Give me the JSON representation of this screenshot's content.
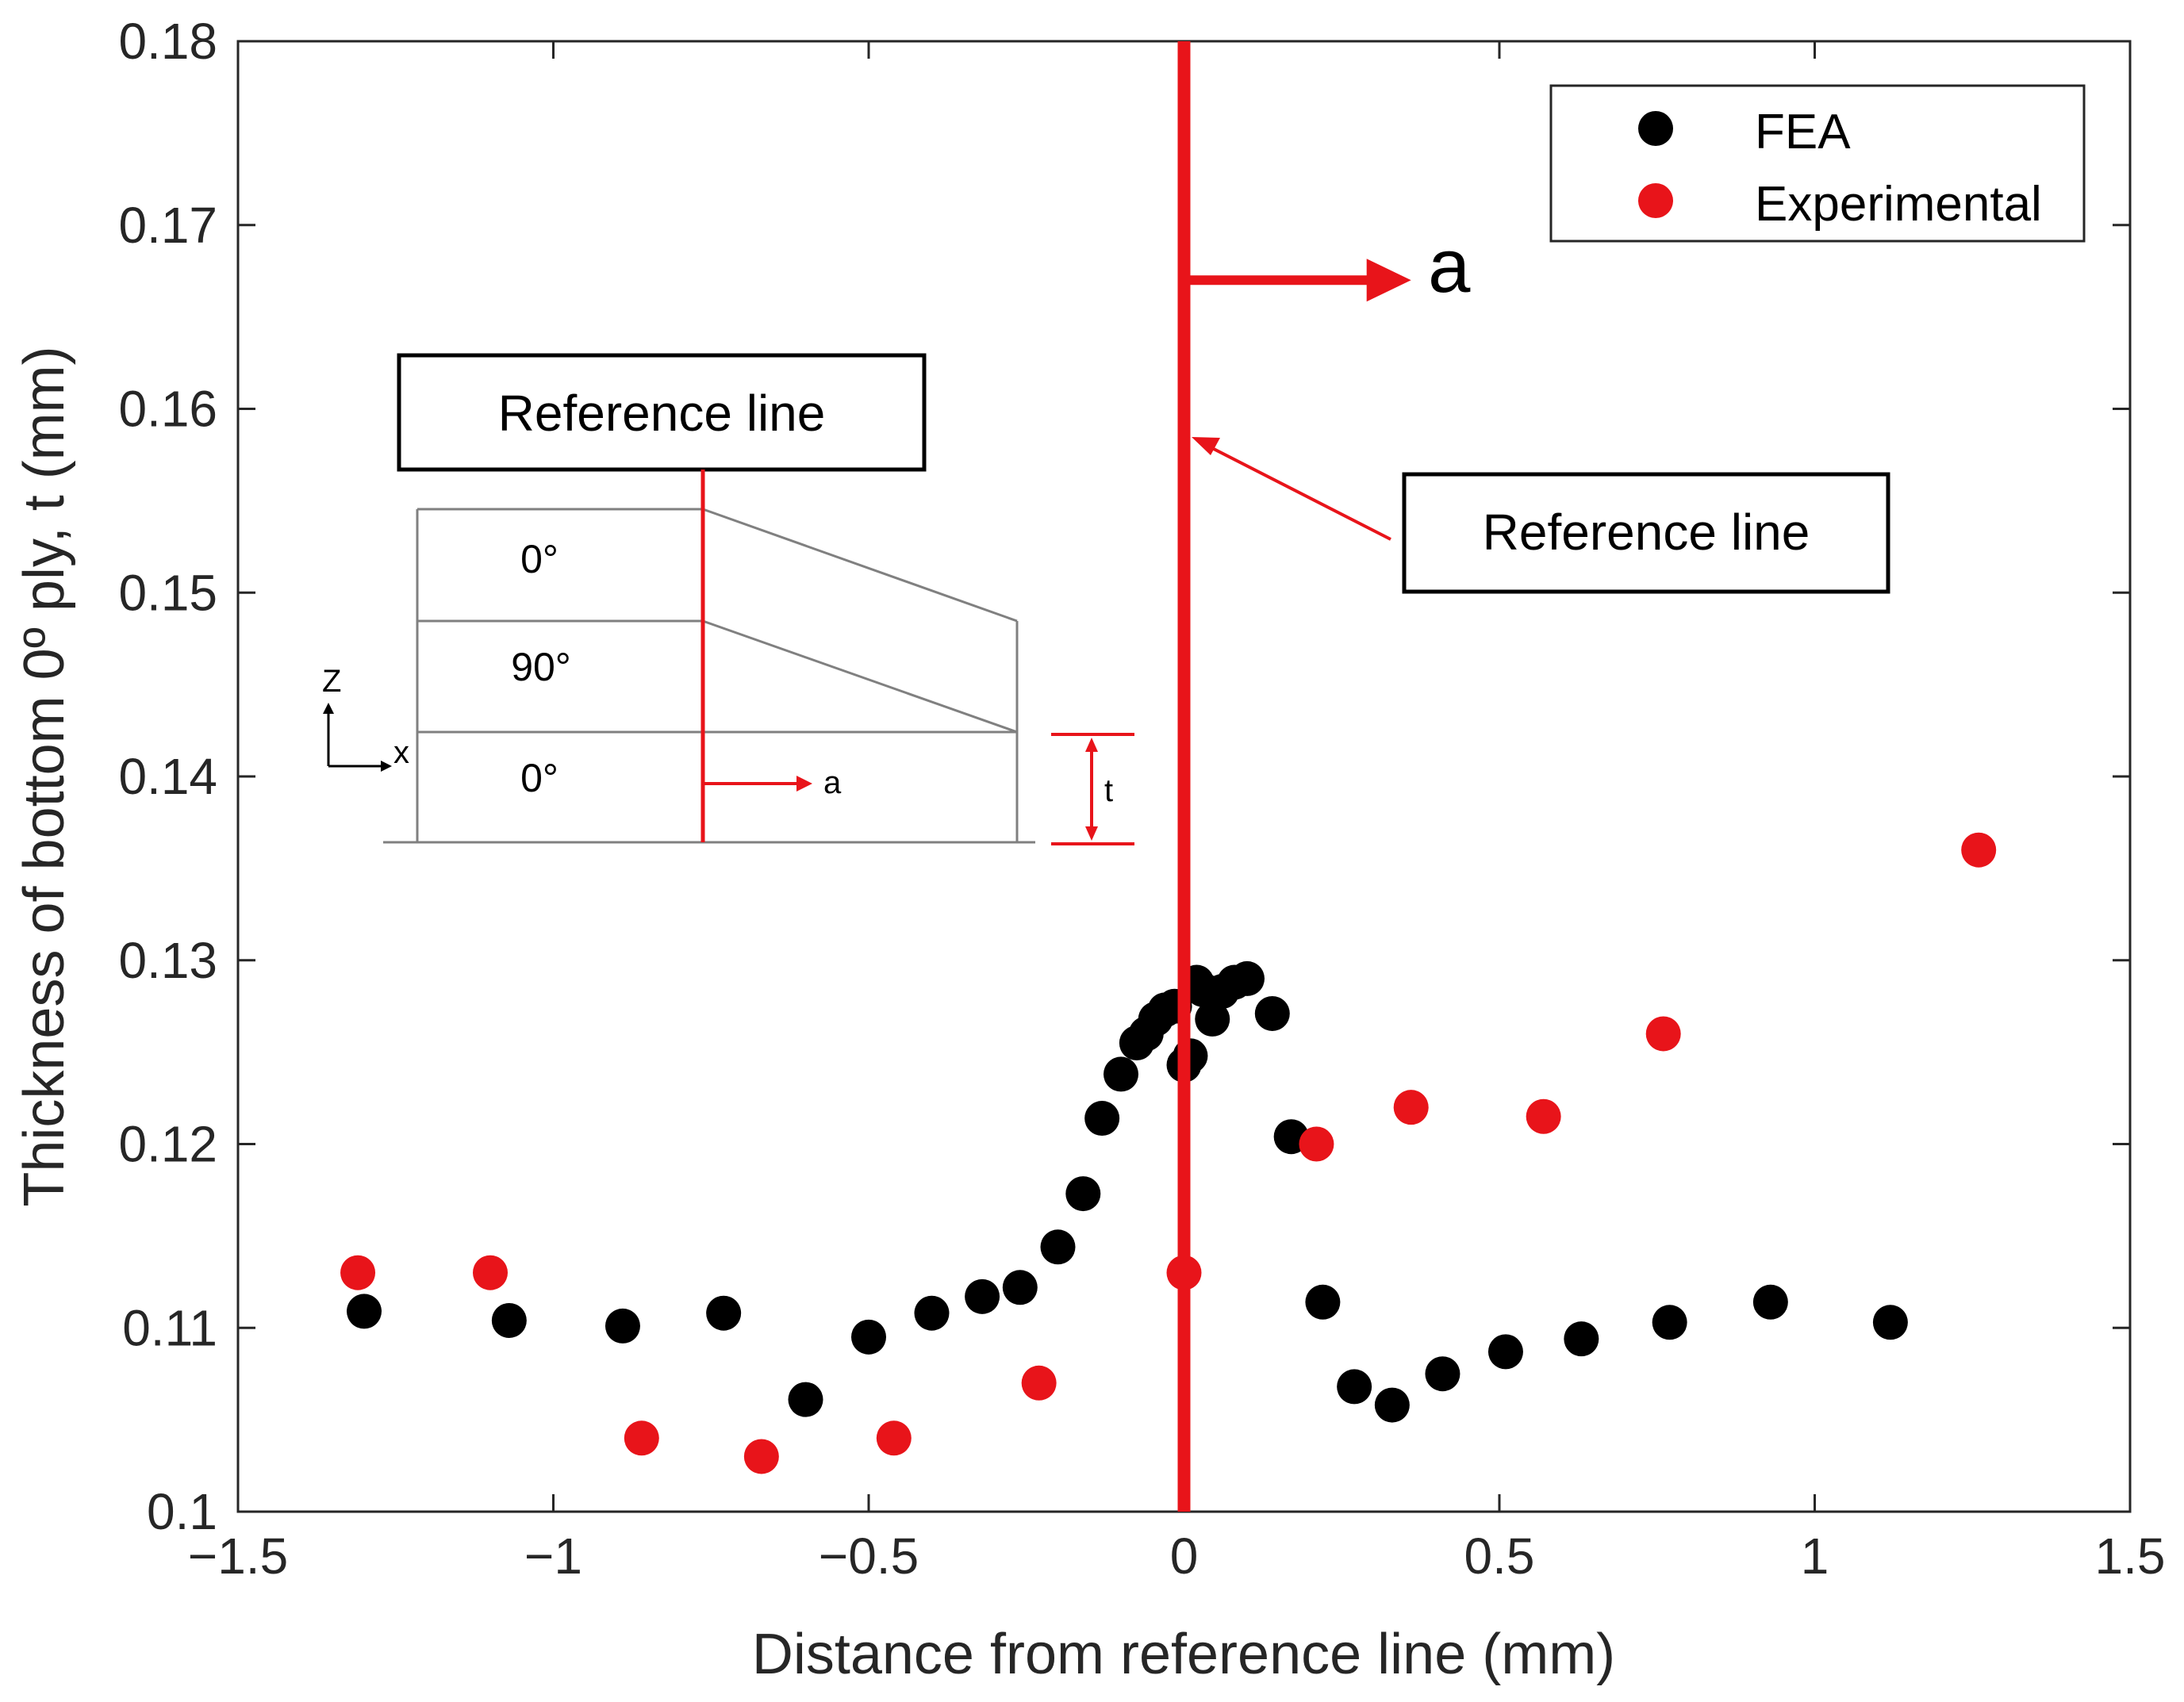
{
  "chart_data": {
    "type": "scatter",
    "title": "",
    "xlabel": "Distance from reference line (mm)",
    "ylabel": "Thickness of bottom 0º ply, t (mm)",
    "xlim": [
      -1.5,
      1.5
    ],
    "ylim": [
      0.1,
      0.18
    ],
    "xticks": [
      -1.5,
      -1,
      -0.5,
      0,
      0.5,
      1,
      1.5
    ],
    "yticks": [
      0.1,
      0.11,
      0.12,
      0.13,
      0.14,
      0.15,
      0.16,
      0.17,
      0.18
    ],
    "xtick_labels": [
      "−1.5",
      "−1",
      "−0.5",
      "0",
      "0.5",
      "1",
      "1.5"
    ],
    "ytick_labels": [
      "0.1",
      "0.11",
      "0.12",
      "0.13",
      "0.14",
      "0.15",
      "0.16",
      "0.17",
      "0.18"
    ],
    "grid": false,
    "legend_position": "top-right",
    "series": [
      {
        "name": "FEA",
        "color": "#000000",
        "x": [
          -1.3,
          -1.07,
          -0.89,
          -0.73,
          -0.6,
          -0.5,
          -0.4,
          -0.32,
          -0.26,
          -0.2,
          -0.16,
          -0.13,
          -0.1,
          -0.075,
          -0.06,
          -0.045,
          -0.03,
          -0.015,
          0.0,
          0.01,
          0.02,
          0.03,
          0.045,
          0.06,
          0.08,
          0.1,
          0.14,
          0.17,
          0.22,
          0.27,
          0.33,
          0.41,
          0.51,
          0.63,
          0.77,
          0.93,
          1.12
        ],
        "y": [
          0.1109,
          0.1104,
          0.1101,
          0.1108,
          0.1061,
          0.1095,
          0.1108,
          0.1117,
          0.1122,
          0.1144,
          0.1173,
          0.1214,
          0.1238,
          0.1255,
          0.126,
          0.1268,
          0.1273,
          0.1275,
          0.1243,
          0.1248,
          0.1288,
          0.1284,
          0.1268,
          0.1283,
          0.1288,
          0.129,
          0.1271,
          0.1204,
          0.1114,
          0.1068,
          0.1058,
          0.1075,
          0.1087,
          0.1094,
          0.1103,
          0.1114,
          0.1103
        ]
      },
      {
        "name": "Experimental",
        "color": "#e8141a",
        "x": [
          -1.31,
          -1.1,
          -0.86,
          -0.67,
          -0.46,
          -0.23,
          0.0,
          0.21,
          0.36,
          0.57,
          0.76,
          1.26
        ],
        "y": [
          0.113,
          0.113,
          0.104,
          0.103,
          0.104,
          0.107,
          0.113,
          0.12,
          0.122,
          0.1215,
          0.126,
          0.136
        ]
      }
    ],
    "annotations": {
      "reference_line_label": "Reference line",
      "arrow_label": "a",
      "reference_line_x": 0,
      "arrow_start_y": 0.167,
      "arrow_end_x": 0.36
    },
    "inset": {
      "reference_line_label": "Reference line",
      "ply_labels": [
        "0°",
        "90°",
        "0°"
      ],
      "axis_z_label": "Z",
      "axis_x_label": "x",
      "arrow_label": "a",
      "thickness_label": "t"
    }
  }
}
